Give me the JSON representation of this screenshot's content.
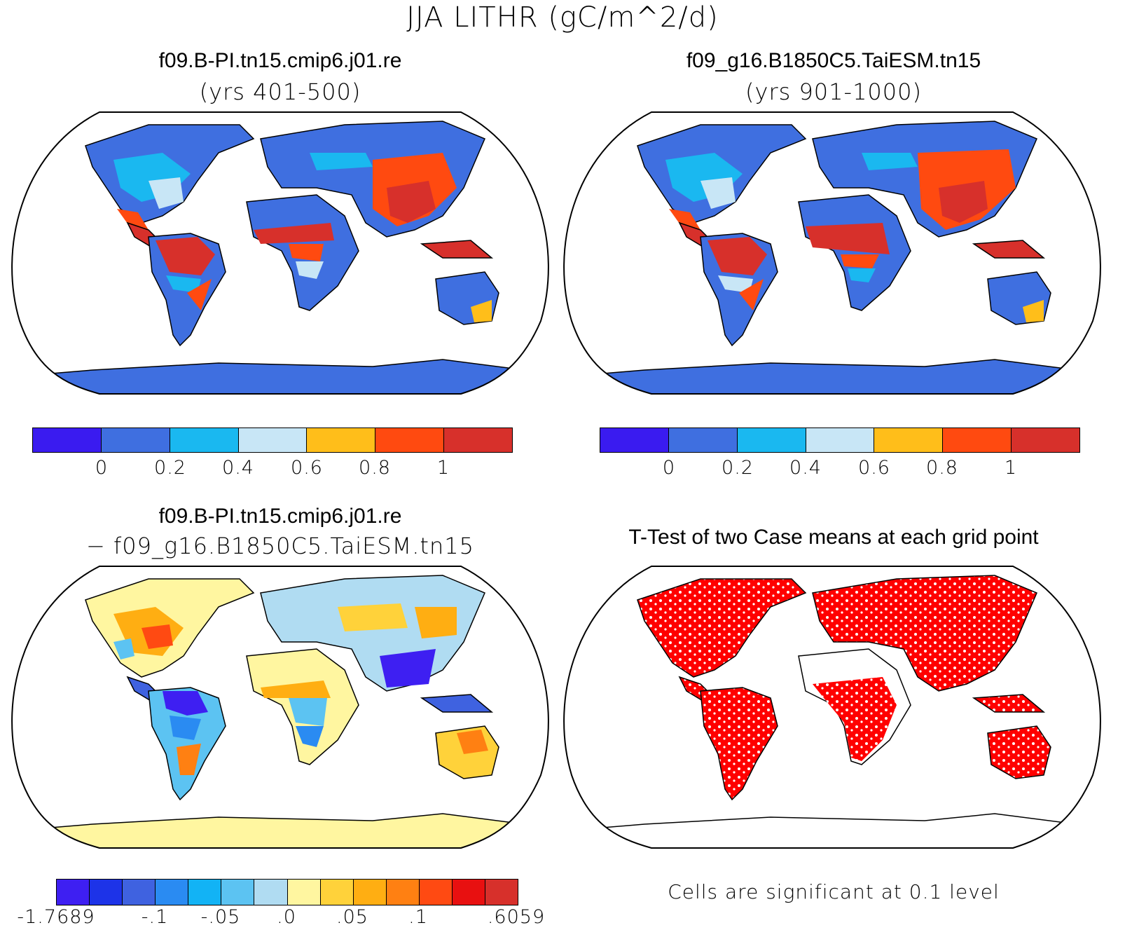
{
  "figure": {
    "title": "JJA LITHR (gC/m^2/d)"
  },
  "panels": {
    "case1": {
      "title": "f09.B-PI.tn15.cmip6.j01.re",
      "years": "(yrs 401-500)"
    },
    "case2": {
      "title": "f09_g16.B1850C5.TaiESM.tn15",
      "years": "(yrs 901-1000)"
    },
    "difference": {
      "title_line1": "f09.B-PI.tn15.cmip6.j01.re",
      "title_line2": "− f09_g16.B1850C5.TaiESM.tn15"
    },
    "ttest": {
      "title": "T-Test of two Case means at each grid point",
      "note": "Cells are significant at 0.1 level",
      "significant_color": "#ff0000"
    }
  },
  "colorbars": {
    "case_scale": {
      "colors": [
        "#3a1bf0",
        "#3f6fe0",
        "#1ab8f0",
        "#c8e6f6",
        "#ffbe1a",
        "#ff4a10",
        "#d7302b"
      ],
      "labels": [
        "0",
        "0.2",
        "0.4",
        "0.6",
        "0.8",
        "1"
      ]
    },
    "diff_scale": {
      "colors": [
        "#3e1ff2",
        "#1d33e8",
        "#3f62e0",
        "#2a8bf2",
        "#12b3f5",
        "#5cc3f2",
        "#b0dcf2",
        "#fff6a0",
        "#ffd23a",
        "#ffae12",
        "#ff8012",
        "#ff4a12",
        "#e81010",
        "#d7302b"
      ],
      "labels": [
        "-1.7689",
        "-.1",
        "-.05",
        ".0",
        ".05",
        ".1",
        ".6059"
      ]
    }
  },
  "legend_swatches": {
    "ocean": "#ffffff",
    "case_land_base": "#3f6fe0",
    "diff_land_base": "#fff6a0"
  }
}
